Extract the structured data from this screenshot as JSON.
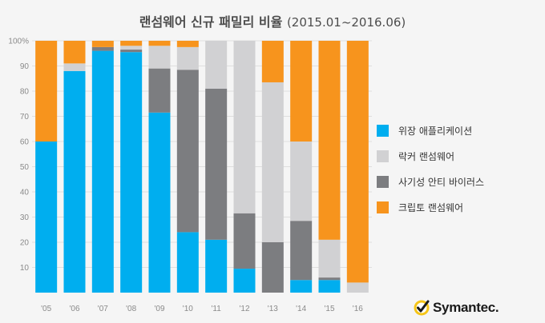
{
  "header": {
    "title_main": "랜섬웨어 신규 패밀리 비율",
    "title_range": "(2015.01~2016.06)"
  },
  "brand": {
    "name": "Symantec.",
    "icon": "checkmark-seal-icon"
  },
  "colors": {
    "disguise_app": "#00aeef",
    "locker": "#d1d1d3",
    "fake_antivirus": "#7c7d80",
    "crypto": "#f7941d"
  },
  "chart_data": {
    "type": "bar",
    "stacked": true,
    "categories": [
      "'05",
      "'06",
      "'07",
      "'08",
      "'09",
      "'10",
      "'11",
      "'12",
      "'13",
      "'14",
      "'15",
      "'16"
    ],
    "y_tick_labels": [
      "10",
      "20",
      "30",
      "40",
      "50",
      "60",
      "70",
      "80",
      "90",
      "100%"
    ],
    "ylim": [
      0,
      100
    ],
    "grid": true,
    "legend_position": "right",
    "series": [
      {
        "name": "위장 애플리케이션",
        "color_key": "disguise_app",
        "values": [
          60,
          88,
          96,
          95.5,
          71.5,
          24,
          21,
          9.5,
          0,
          5,
          5,
          0
        ]
      },
      {
        "name": "사기성 안티 바이러스",
        "color_key": "fake_antivirus",
        "values": [
          0,
          0,
          1.5,
          1,
          17.5,
          64.5,
          60,
          22,
          20,
          23.5,
          1,
          0
        ]
      },
      {
        "name": "락커 랜섬웨어",
        "color_key": "locker",
        "values": [
          0,
          3,
          0,
          1.5,
          9,
          9,
          19,
          68.5,
          63.5,
          31.5,
          15,
          4
        ]
      },
      {
        "name": "크립토 랜섬웨어",
        "color_key": "crypto",
        "values": [
          40,
          9,
          2.5,
          2,
          2,
          2.5,
          0,
          0,
          16.5,
          40,
          79,
          96
        ]
      }
    ],
    "legend_order": [
      "disguise_app",
      "locker",
      "fake_antivirus",
      "crypto"
    ]
  }
}
